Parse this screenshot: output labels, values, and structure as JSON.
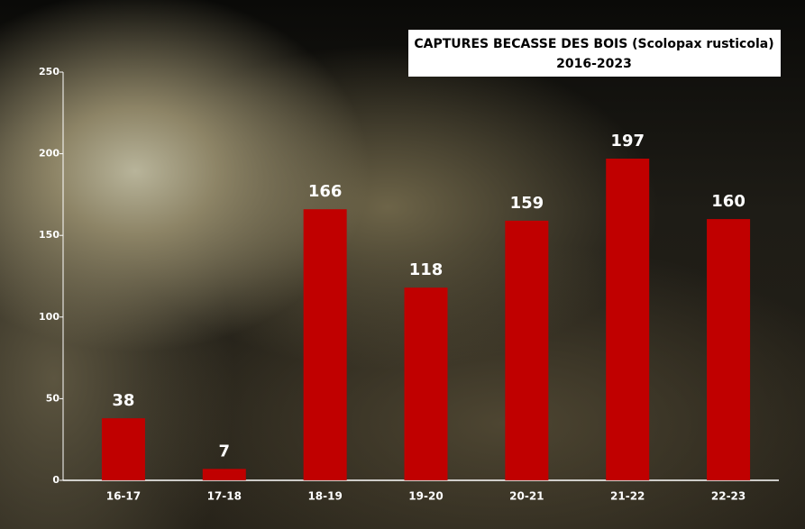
{
  "chart_data": {
    "type": "bar",
    "title": "CAPTURES BECASSE DES BOIS (Scolopax rusticola)",
    "subtitle": "2016-2023",
    "categories": [
      "16-17",
      "17-18",
      "18-19",
      "19-20",
      "20-21",
      "21-22",
      "22-23"
    ],
    "values": [
      38,
      7,
      166,
      118,
      159,
      197,
      160
    ],
    "color": "#c00000",
    "ylim": [
      0,
      250
    ],
    "yticks": [
      0,
      50,
      100,
      150,
      200,
      250
    ]
  }
}
